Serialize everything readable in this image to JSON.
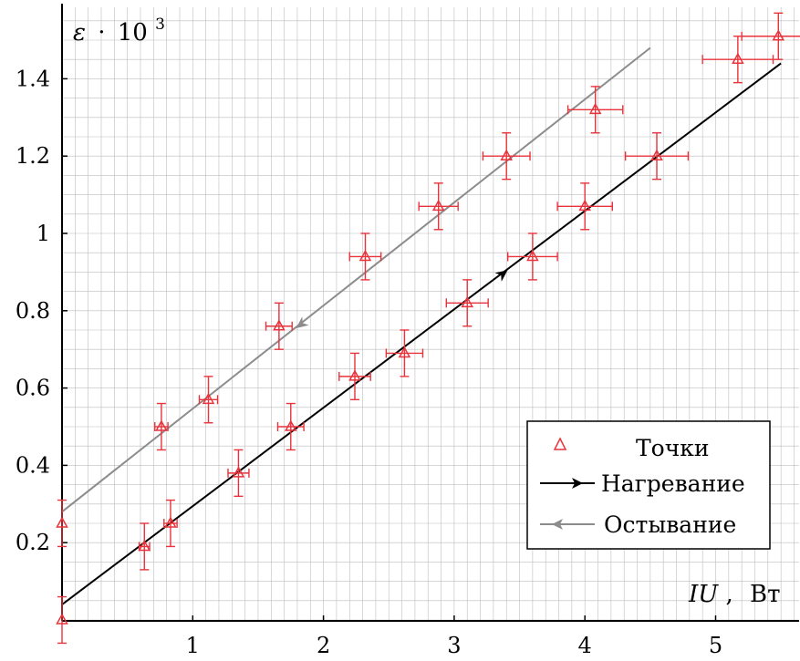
{
  "chart_data": {
    "type": "scatter",
    "title": "",
    "xlabel": {
      "var": "IU",
      "sep": ",",
      "unit": "Вт"
    },
    "ylabel": {
      "var": "ε",
      "op": "·",
      "base": "10",
      "exp": "3"
    },
    "xlim": [
      0,
      5.6
    ],
    "ylim": [
      0,
      1.57
    ],
    "xticks": [
      "1",
      "2",
      "3",
      "4",
      "5"
    ],
    "yticks": [
      "0.2",
      "0.4",
      "0.6",
      "0.8",
      "1",
      "1.2",
      "1.4"
    ],
    "xtick_values": [
      1,
      2,
      3,
      4,
      5
    ],
    "ytick_values": [
      0.2,
      0.4,
      0.6,
      0.8,
      1,
      1.2,
      1.4
    ],
    "grid": true,
    "legend_position": "bottom-right",
    "colors": {
      "points": "#e8333b",
      "heating": "#000000",
      "cooling": "#8c8c8c",
      "grid": "#bdbdbd"
    },
    "series": [
      {
        "name": "Точки",
        "kind": "points",
        "points": [
          {
            "x": 0.0,
            "y": 0.0,
            "xerr": 0.0,
            "yerr": 0.06
          },
          {
            "x": 0.0,
            "y": 0.25,
            "xerr": 0.0,
            "yerr": 0.06
          },
          {
            "x": 0.63,
            "y": 0.19,
            "xerr": 0.04,
            "yerr": 0.06
          },
          {
            "x": 0.83,
            "y": 0.25,
            "xerr": 0.05,
            "yerr": 0.06
          },
          {
            "x": 0.76,
            "y": 0.5,
            "xerr": 0.05,
            "yerr": 0.06
          },
          {
            "x": 1.12,
            "y": 0.57,
            "xerr": 0.07,
            "yerr": 0.06
          },
          {
            "x": 1.35,
            "y": 0.38,
            "xerr": 0.08,
            "yerr": 0.06
          },
          {
            "x": 1.66,
            "y": 0.76,
            "xerr": 0.1,
            "yerr": 0.06
          },
          {
            "x": 1.75,
            "y": 0.5,
            "xerr": 0.1,
            "yerr": 0.06
          },
          {
            "x": 2.24,
            "y": 0.63,
            "xerr": 0.12,
            "yerr": 0.06
          },
          {
            "x": 2.32,
            "y": 0.94,
            "xerr": 0.12,
            "yerr": 0.06
          },
          {
            "x": 2.62,
            "y": 0.69,
            "xerr": 0.14,
            "yerr": 0.06
          },
          {
            "x": 2.88,
            "y": 1.07,
            "xerr": 0.15,
            "yerr": 0.06
          },
          {
            "x": 3.1,
            "y": 0.82,
            "xerr": 0.16,
            "yerr": 0.06
          },
          {
            "x": 3.4,
            "y": 1.2,
            "xerr": 0.18,
            "yerr": 0.06
          },
          {
            "x": 3.6,
            "y": 0.94,
            "xerr": 0.19,
            "yerr": 0.06
          },
          {
            "x": 4.0,
            "y": 1.07,
            "xerr": 0.21,
            "yerr": 0.06
          },
          {
            "x": 4.08,
            "y": 1.32,
            "xerr": 0.21,
            "yerr": 0.06
          },
          {
            "x": 4.55,
            "y": 1.2,
            "xerr": 0.24,
            "yerr": 0.06
          },
          {
            "x": 5.17,
            "y": 1.45,
            "xerr": 0.27,
            "yerr": 0.06
          },
          {
            "x": 5.48,
            "y": 1.51,
            "xerr": 0.28,
            "yerr": 0.06
          }
        ]
      },
      {
        "name": "Нагревание",
        "kind": "line",
        "x": [
          0.0,
          5.5
        ],
        "y": [
          0.04,
          1.44
        ],
        "arrow": {
          "x": 3.37,
          "y": 0.895,
          "direction": "forward"
        }
      },
      {
        "name": "Остывание",
        "kind": "line",
        "x": [
          0.0,
          4.5
        ],
        "y": [
          0.28,
          1.48
        ],
        "arrow": {
          "x": 1.83,
          "y": 0.765,
          "direction": "backward"
        }
      }
    ]
  }
}
